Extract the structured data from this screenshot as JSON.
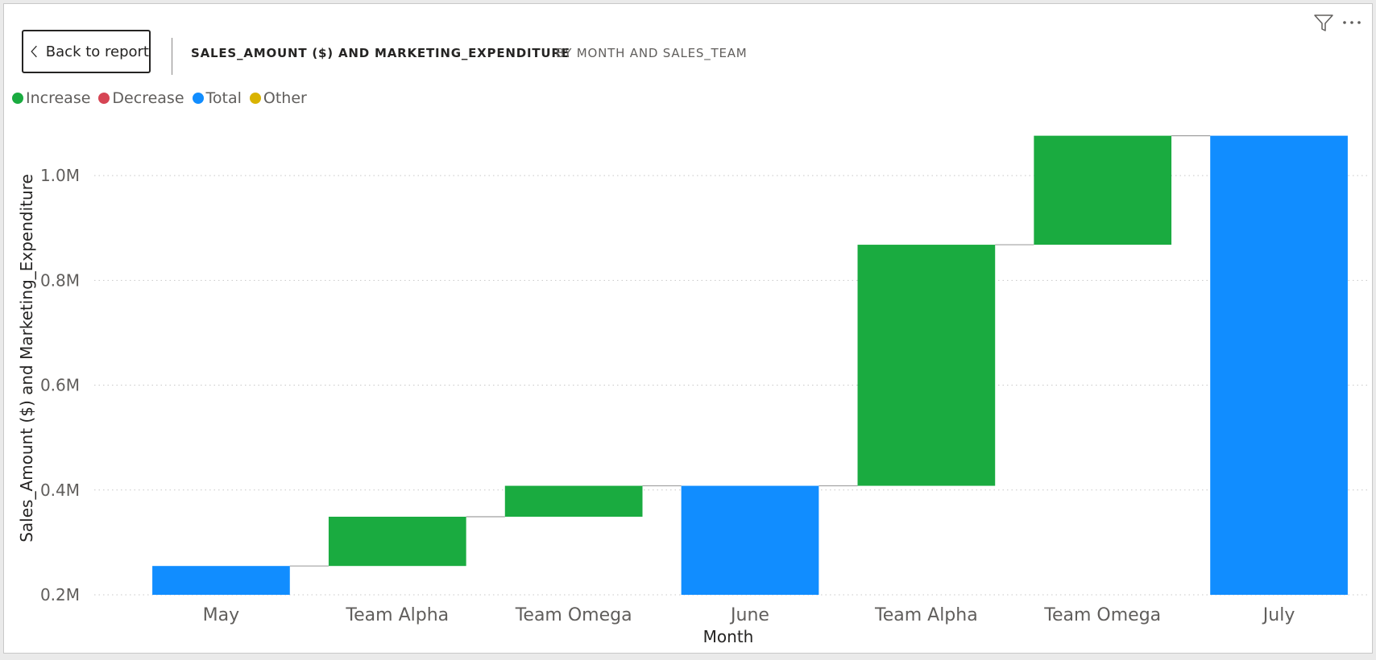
{
  "header": {
    "back_label": "Back to report",
    "title": "SALES_AMOUNT ($) AND MARKETING_EXPENDITURE",
    "subtitle": "BY MONTH AND SALES_TEAM"
  },
  "icons": {
    "filter": "filter-icon",
    "more": "more-options-icon",
    "back": "chevron-left-icon"
  },
  "legend": [
    {
      "label": "Increase",
      "color": "#1aab40"
    },
    {
      "label": "Decrease",
      "color": "#d64554"
    },
    {
      "label": "Total",
      "color": "#118dff"
    },
    {
      "label": "Other",
      "color": "#d9b300"
    }
  ],
  "chart_data": {
    "type": "bar",
    "subtype": "waterfall",
    "categories": [
      "May",
      "Team Alpha",
      "Team Omega",
      "June",
      "Team Alpha",
      "Team Omega",
      "July"
    ],
    "bars": [
      {
        "kind": "total",
        "start": 0,
        "end": 255000
      },
      {
        "kind": "increase",
        "start": 255000,
        "end": 349000
      },
      {
        "kind": "increase",
        "start": 349000,
        "end": 408000
      },
      {
        "kind": "total",
        "start": 0,
        "end": 408000
      },
      {
        "kind": "increase",
        "start": 408000,
        "end": 868000
      },
      {
        "kind": "increase",
        "start": 868000,
        "end": 1076000
      },
      {
        "kind": "total",
        "start": 0,
        "end": 1076000
      }
    ],
    "xlabel": "Month",
    "ylabel": "Sales_Amount ($) and Marketing_Expenditure",
    "ylim": [
      200000,
      1100000
    ],
    "yticks": [
      {
        "value": 200000,
        "label": "0.2M"
      },
      {
        "value": 400000,
        "label": "0.4M"
      },
      {
        "value": 600000,
        "label": "0.6M"
      },
      {
        "value": 800000,
        "label": "0.8M"
      },
      {
        "value": 1000000,
        "label": "1.0M"
      }
    ],
    "grid": true,
    "legend_position": "top-left"
  }
}
